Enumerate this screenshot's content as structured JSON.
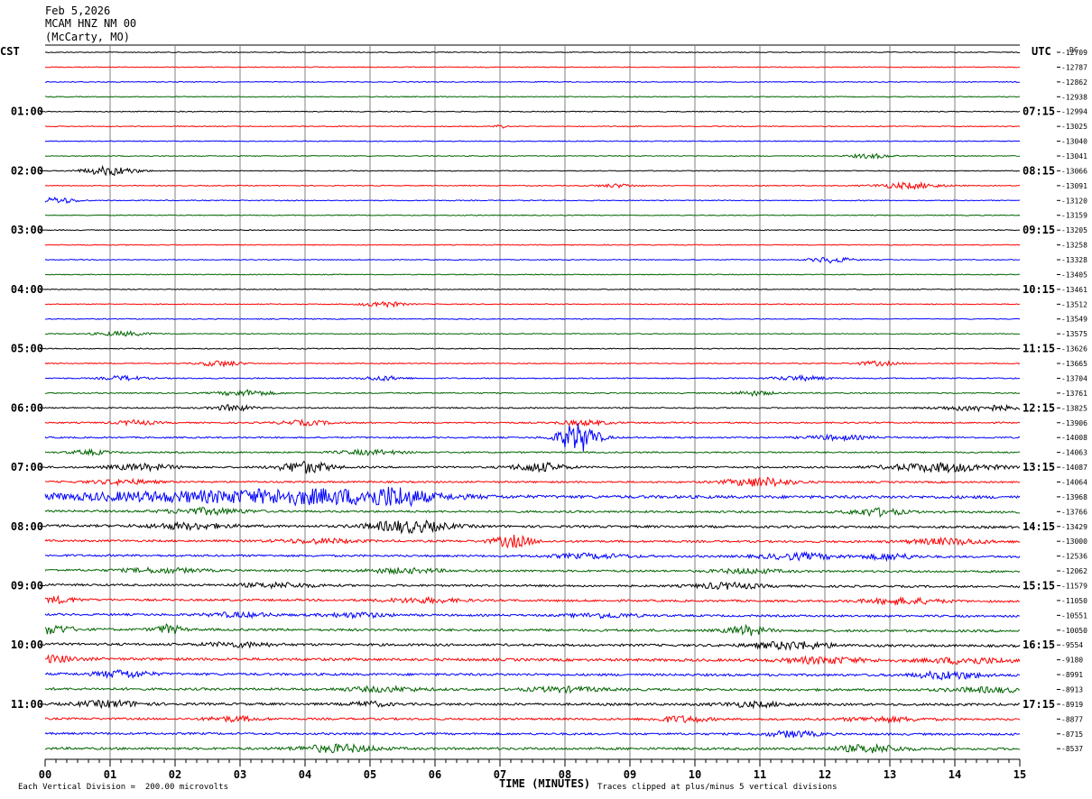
{
  "header": {
    "date": "Feb 5,2026",
    "station": "MCAM HNZ NM 00",
    "location": "(McCarty, MO)"
  },
  "left_tz": "CST",
  "right_tz": "UTC",
  "dc_label": "DC",
  "footer": {
    "scale": "Each Vertical Division =  200.00 microvolts",
    "clip": "Traces clipped at plus/minus 5 vertical divisions"
  },
  "colors": {
    "trace_cycle": [
      "#000000",
      "#ff0000",
      "#0000ff",
      "#006400"
    ],
    "grid": "#808080"
  },
  "chart_data": {
    "type": "line",
    "xlabel": "TIME (MINUTES)",
    "x_ticks": [
      "00",
      "01",
      "02",
      "03",
      "04",
      "05",
      "06",
      "07",
      "08",
      "09",
      "10",
      "11",
      "12",
      "13",
      "14",
      "15"
    ],
    "xlim": [
      0,
      15
    ],
    "left_hour_labels": [
      "01:00",
      "02:00",
      "03:00",
      "04:00",
      "05:00",
      "06:00",
      "07:00",
      "08:00",
      "09:00",
      "10:00",
      "11:00"
    ],
    "right_hour_labels": [
      "07:15",
      "08:15",
      "09:15",
      "10:15",
      "11:15",
      "12:15",
      "13:15",
      "14:15",
      "15:15",
      "16:15",
      "17:15"
    ],
    "dc_offsets": [
      -12709,
      -12787,
      -12862,
      -12938,
      -12994,
      -13025,
      -13040,
      -13041,
      -13066,
      -13091,
      -13120,
      -13159,
      -13205,
      -13258,
      -13328,
      -13405,
      -13461,
      -13512,
      -13549,
      -13575,
      -13626,
      -13665,
      -13704,
      -13761,
      -13825,
      -13906,
      -14008,
      -14063,
      -14087,
      -14064,
      -13968,
      -13766,
      -13429,
      -13000,
      -12536,
      -12062,
      -11579,
      -11050,
      -10551,
      -10050,
      -9554,
      -9180,
      -8991,
      -8913,
      -8919,
      -8877,
      -8715,
      -8537
    ],
    "traces": [
      {
        "base": 0.3,
        "tilt": 0,
        "events": []
      },
      {
        "base": 0.3,
        "tilt": 0,
        "events": []
      },
      {
        "base": 0.3,
        "tilt": 0,
        "events": []
      },
      {
        "base": 0.3,
        "tilt": 0,
        "events": []
      },
      {
        "base": 0.3,
        "tilt": 0,
        "events": []
      },
      {
        "base": 0.3,
        "tilt": 0,
        "events": [
          [
            7.0,
            0.1,
            1.2
          ]
        ]
      },
      {
        "base": 0.3,
        "tilt": 0,
        "events": []
      },
      {
        "base": 0.3,
        "tilt": 0,
        "events": [
          [
            12.7,
            0.3,
            1.5
          ]
        ]
      },
      {
        "base": 0.3,
        "tilt": 0,
        "events": [
          [
            1.0,
            0.4,
            3
          ]
        ]
      },
      {
        "base": 0.3,
        "tilt": 0,
        "events": [
          [
            8.8,
            0.3,
            1.2
          ],
          [
            13.3,
            0.5,
            2
          ]
        ]
      },
      {
        "base": 0.3,
        "tilt": 0,
        "events": [
          [
            0.2,
            0.3,
            2
          ]
        ]
      },
      {
        "base": 0.3,
        "tilt": 0,
        "events": []
      },
      {
        "base": 0.3,
        "tilt": 0,
        "events": []
      },
      {
        "base": 0.3,
        "tilt": 0,
        "events": []
      },
      {
        "base": 0.3,
        "tilt": 0,
        "events": [
          [
            12.1,
            0.3,
            2
          ]
        ]
      },
      {
        "base": 0.3,
        "tilt": 0,
        "events": []
      },
      {
        "base": 0.3,
        "tilt": 0,
        "events": []
      },
      {
        "base": 0.3,
        "tilt": 0,
        "events": [
          [
            5.2,
            0.3,
            2
          ]
        ]
      },
      {
        "base": 0.3,
        "tilt": 0,
        "events": []
      },
      {
        "base": 0.3,
        "tilt": 0,
        "events": [
          [
            1.2,
            0.4,
            1.5
          ]
        ]
      },
      {
        "base": 0.35,
        "tilt": 0,
        "events": []
      },
      {
        "base": 0.35,
        "tilt": 0,
        "events": [
          [
            2.7,
            0.3,
            2
          ],
          [
            12.8,
            0.3,
            1.5
          ]
        ]
      },
      {
        "base": 0.4,
        "tilt": 0,
        "events": [
          [
            1.2,
            0.3,
            1.5
          ],
          [
            5.2,
            0.3,
            1.5
          ],
          [
            11.6,
            0.4,
            1.5
          ]
        ]
      },
      {
        "base": 0.4,
        "tilt": 0,
        "events": [
          [
            3.1,
            0.4,
            2
          ],
          [
            10.9,
            0.3,
            1.5
          ]
        ]
      },
      {
        "base": 0.45,
        "tilt": 0,
        "events": [
          [
            2.9,
            0.3,
            2
          ],
          [
            14.4,
            0.6,
            2
          ]
        ]
      },
      {
        "base": 0.5,
        "tilt": 0,
        "events": [
          [
            1.4,
            0.3,
            1.5
          ],
          [
            4.0,
            0.4,
            1.5
          ],
          [
            8.3,
            0.4,
            1.5
          ]
        ]
      },
      {
        "base": 0.5,
        "tilt": 0,
        "events": [
          [
            8.2,
            0.3,
            10
          ],
          [
            12.2,
            0.5,
            1.5
          ]
        ]
      },
      {
        "base": 0.5,
        "tilt": 0,
        "events": [
          [
            0.7,
            0.3,
            1.5
          ],
          [
            5.0,
            0.5,
            1.5
          ]
        ]
      },
      {
        "base": 0.6,
        "tilt": 0,
        "events": [
          [
            1.5,
            0.5,
            2
          ],
          [
            4.0,
            0.4,
            4
          ],
          [
            7.6,
            0.4,
            3
          ],
          [
            13.8,
            0.8,
            3
          ]
        ]
      },
      {
        "base": 0.6,
        "tilt": 0.1,
        "events": [
          [
            1.2,
            0.5,
            1.5
          ],
          [
            11.0,
            0.5,
            3
          ]
        ]
      },
      {
        "base": 1.0,
        "tilt": 0.2,
        "events": [
          [
            2.3,
            2.5,
            3
          ],
          [
            4.5,
            1.5,
            3.5
          ],
          [
            5.4,
            0.4,
            4
          ]
        ]
      },
      {
        "base": 0.7,
        "tilt": 0.3,
        "events": [
          [
            2.5,
            0.6,
            2
          ],
          [
            12.8,
            0.4,
            2.5
          ]
        ]
      },
      {
        "base": 0.8,
        "tilt": 0.4,
        "events": [
          [
            2.2,
            0.6,
            2
          ],
          [
            5.6,
            0.6,
            4
          ]
        ]
      },
      {
        "base": 0.7,
        "tilt": 0.3,
        "events": [
          [
            4.2,
            0.6,
            1.5
          ],
          [
            7.2,
            0.3,
            4
          ],
          [
            13.9,
            0.6,
            2
          ]
        ]
      },
      {
        "base": 0.7,
        "tilt": 0.4,
        "events": [
          [
            8.4,
            0.6,
            1.5
          ],
          [
            11.6,
            0.6,
            2
          ],
          [
            13.0,
            0.4,
            2
          ]
        ]
      },
      {
        "base": 0.7,
        "tilt": 0.4,
        "events": [
          [
            1.8,
            0.6,
            1.5
          ],
          [
            5.5,
            0.6,
            1.5
          ],
          [
            10.8,
            0.5,
            1.5
          ]
        ]
      },
      {
        "base": 0.7,
        "tilt": 0.5,
        "events": [
          [
            3.6,
            0.6,
            1.5
          ],
          [
            10.5,
            0.5,
            2
          ]
        ]
      },
      {
        "base": 0.7,
        "tilt": 0.5,
        "events": [
          [
            0.2,
            0.3,
            2
          ],
          [
            5.8,
            0.6,
            1.5
          ],
          [
            13.2,
            0.6,
            2
          ]
        ]
      },
      {
        "base": 0.7,
        "tilt": 0.5,
        "events": [
          [
            3.0,
            0.5,
            1.5
          ],
          [
            4.8,
            0.5,
            1.5
          ],
          [
            8.6,
            0.5,
            1.5
          ]
        ]
      },
      {
        "base": 0.8,
        "tilt": 0.5,
        "events": [
          [
            0.1,
            0.3,
            3
          ],
          [
            1.9,
            0.2,
            3
          ],
          [
            10.8,
            0.3,
            3
          ]
        ]
      },
      {
        "base": 0.8,
        "tilt": 0.5,
        "events": [
          [
            3.0,
            0.5,
            1.5
          ],
          [
            11.5,
            0.6,
            2.5
          ]
        ]
      },
      {
        "base": 0.9,
        "tilt": 0.5,
        "events": [
          [
            0.1,
            0.4,
            2
          ],
          [
            12.0,
            0.6,
            2
          ],
          [
            14.2,
            0.6,
            2
          ]
        ]
      },
      {
        "base": 0.8,
        "tilt": 0.4,
        "events": [
          [
            1.2,
            0.4,
            2.5
          ],
          [
            13.9,
            0.5,
            2.5
          ]
        ]
      },
      {
        "base": 0.8,
        "tilt": 0.3,
        "events": [
          [
            5.2,
            0.6,
            1.5
          ],
          [
            8.0,
            0.6,
            1.5
          ],
          [
            14.5,
            0.6,
            1.5
          ]
        ]
      },
      {
        "base": 0.8,
        "tilt": 0.2,
        "events": [
          [
            1.0,
            0.5,
            2
          ],
          [
            5.0,
            0.3,
            1.5
          ],
          [
            10.9,
            0.5,
            1.5
          ]
        ]
      },
      {
        "base": 0.7,
        "tilt": 0.2,
        "events": [
          [
            2.9,
            0.4,
            1.5
          ],
          [
            9.8,
            0.4,
            2
          ],
          [
            12.9,
            0.6,
            1.5
          ]
        ]
      },
      {
        "base": 0.7,
        "tilt": 0.2,
        "events": [
          [
            11.5,
            0.4,
            2
          ]
        ]
      },
      {
        "base": 0.8,
        "tilt": 0.1,
        "events": [
          [
            4.5,
            0.6,
            2.5
          ],
          [
            12.7,
            0.5,
            2.5
          ]
        ]
      }
    ]
  }
}
